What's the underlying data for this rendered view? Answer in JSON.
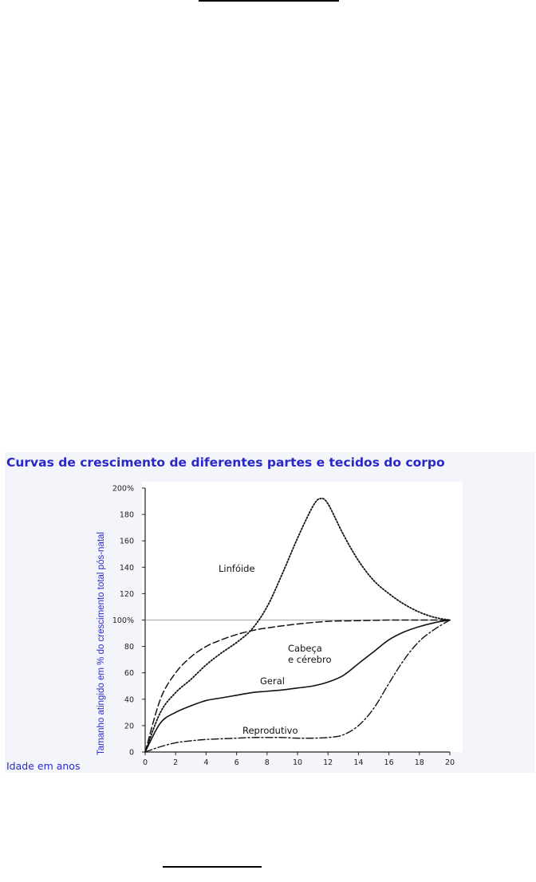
{
  "page": {
    "top_rule": "",
    "bottom_rule": ""
  },
  "chart_data": {
    "type": "line",
    "title": "Curvas de crescimento de diferentes partes e tecidos do corpo",
    "xlabel": "Idade em anos",
    "ylabel": "Tamanho atingido em % do crescimento total pós-natal",
    "xlim": [
      0,
      20
    ],
    "ylim": [
      0,
      200
    ],
    "x_ticks": [
      "0",
      "2",
      "4",
      "6",
      "8",
      "10",
      "12",
      "14",
      "16",
      "18",
      "20"
    ],
    "y_ticks": [
      "0",
      "20",
      "40",
      "60",
      "80",
      "100%",
      "120",
      "140",
      "160",
      "180",
      "200%"
    ],
    "reference_line": 100,
    "grid": false,
    "series": [
      {
        "name": "Linfóide",
        "style": "dotted",
        "x": [
          0,
          1,
          2,
          3,
          4,
          5,
          6,
          7,
          8,
          9,
          10,
          11,
          11.5,
          12,
          13,
          14,
          15,
          16,
          17,
          18,
          19,
          20
        ],
        "y": [
          0,
          30,
          45,
          55,
          66,
          75,
          83,
          93,
          110,
          135,
          162,
          186,
          192,
          188,
          165,
          145,
          130,
          120,
          112,
          106,
          102,
          100
        ]
      },
      {
        "name": "Cabeça e cérebro",
        "style": "dashed",
        "x": [
          0,
          1,
          2,
          3,
          4,
          5,
          6,
          7,
          8,
          10,
          12,
          14,
          16,
          18,
          20
        ],
        "y": [
          0,
          40,
          60,
          72,
          80,
          85,
          89,
          92,
          94,
          97,
          99,
          99.5,
          100,
          100,
          100
        ]
      },
      {
        "name": "Geral",
        "style": "solid",
        "x": [
          0,
          1,
          2,
          3,
          4,
          5,
          6,
          7,
          8,
          9,
          10,
          11,
          12,
          13,
          14,
          15,
          16,
          17,
          18,
          19,
          20
        ],
        "y": [
          0,
          22,
          30,
          35,
          39,
          41,
          43,
          45,
          46,
          47,
          48.5,
          50,
          53,
          58,
          67,
          76,
          85,
          91,
          95,
          98,
          100
        ]
      },
      {
        "name": "Reprodutivo",
        "style": "dashdot",
        "x": [
          0,
          1,
          2,
          3,
          4,
          5,
          6,
          7,
          8,
          9,
          10,
          11,
          12,
          13,
          14,
          15,
          16,
          17,
          18,
          19,
          20
        ],
        "y": [
          0,
          4,
          7,
          8.5,
          9.5,
          10,
          10.5,
          11,
          11,
          11,
          10.5,
          10.5,
          11,
          13,
          20,
          33,
          52,
          70,
          84,
          93,
          100
        ]
      }
    ],
    "annotations": [
      {
        "text": "Linfóide",
        "series": "Linfóide"
      },
      {
        "text": "Cabeça",
        "series": "Cabeça e cérebro"
      },
      {
        "text": "e cérebro",
        "series": "Cabeça e cérebro"
      },
      {
        "text": "Geral",
        "series": "Geral"
      },
      {
        "text": "Reprodutivo",
        "series": "Reprodutivo"
      }
    ]
  }
}
